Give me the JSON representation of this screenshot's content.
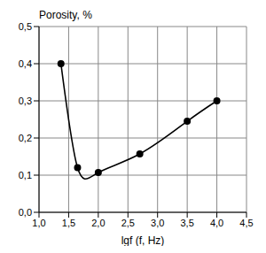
{
  "chart_data": {
    "type": "line",
    "xlabel": "lgf (f, Hz)",
    "ylabel": "Porosity, %",
    "x": [
      1.37,
      1.65,
      2.0,
      2.7,
      3.5,
      4.0
    ],
    "values": [
      0.4,
      0.12,
      0.107,
      0.157,
      0.245,
      0.3
    ],
    "color": "#000000",
    "marker": "circle",
    "line_style": "solid",
    "xlim": [
      1.0,
      4.5
    ],
    "ylim": [
      0.0,
      0.5
    ],
    "xticks": [
      {
        "value": 1.0,
        "label": "1,0"
      },
      {
        "value": 1.5,
        "label": "1,5"
      },
      {
        "value": 2.0,
        "label": "2,0"
      },
      {
        "value": 2.5,
        "label": "2,5"
      },
      {
        "value": 3.0,
        "label": "3,0"
      },
      {
        "value": 3.5,
        "label": "3,5"
      },
      {
        "value": 4.0,
        "label": "4,0"
      },
      {
        "value": 4.5,
        "label": "4,5"
      }
    ],
    "yticks": [
      {
        "value": 0.0,
        "label": "0,0"
      },
      {
        "value": 0.1,
        "label": "0,1"
      },
      {
        "value": 0.2,
        "label": "0,2"
      },
      {
        "value": 0.3,
        "label": "0,3"
      },
      {
        "value": 0.4,
        "label": "0,4"
      },
      {
        "value": 0.5,
        "label": "0,5"
      }
    ],
    "grid": true
  }
}
